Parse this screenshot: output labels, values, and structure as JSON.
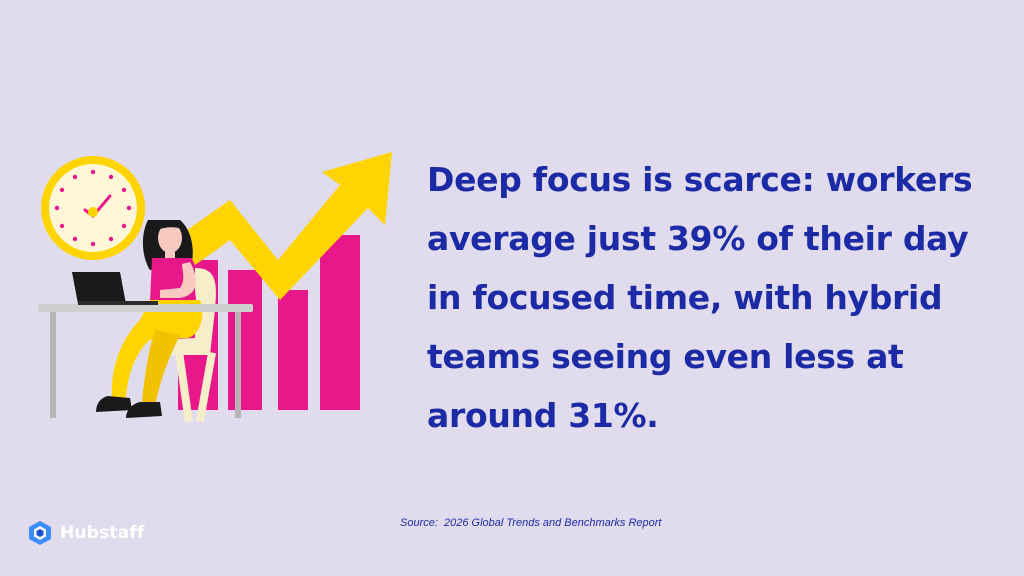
{
  "headline": {
    "lines": [
      "Deep focus is scarce: workers",
      "average just 39% of their day",
      "in focused time, with hybrid",
      "teams seeing even less at",
      "around 31%."
    ]
  },
  "source": {
    "text": "Source:  2026 Global Trends and Benchmarks Report"
  },
  "brand": {
    "name": "Hubstaff"
  },
  "colors": {
    "background": "#e0dcee",
    "headline": "#1c2aa6",
    "bars": "#e8178a",
    "arrow": "#ffd400",
    "clock_face": "#fff7d6",
    "chair": "#f5eec8"
  },
  "icons": [
    "clock-icon",
    "growth-arrow-icon",
    "laptop-icon",
    "hubstaff-logo-icon"
  ]
}
